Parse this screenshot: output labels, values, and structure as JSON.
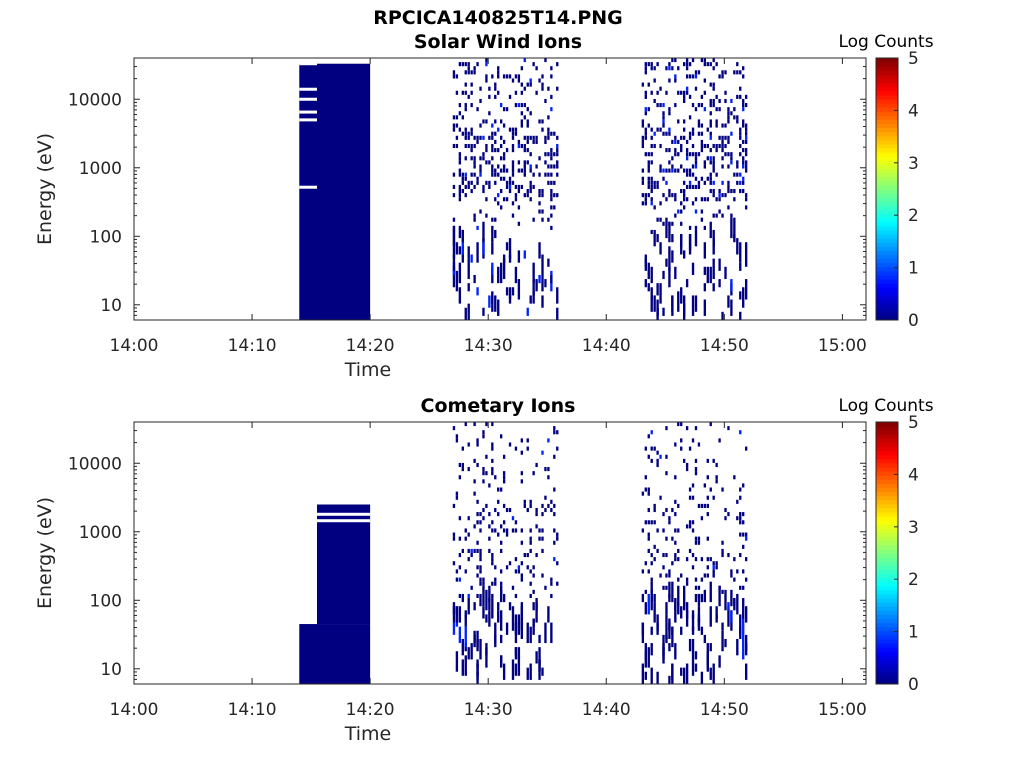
{
  "figure_title": "RPCICA140825T14.PNG",
  "chart_data": [
    {
      "type": "heatmap",
      "title": "Solar Wind Ions",
      "xlabel": "Time",
      "ylabel": "Energy (eV)",
      "x_range": [
        "14:00",
        "15:02"
      ],
      "x_ticks": [
        "14:00",
        "14:10",
        "14:20",
        "14:30",
        "14:40",
        "14:50",
        "15:00"
      ],
      "y_scale": "log",
      "y_range": [
        6,
        40000
      ],
      "y_ticks": [
        "10",
        "100",
        "1000",
        "10000"
      ],
      "colorbar": {
        "label": "Log Counts",
        "min": 0,
        "max": 5,
        "ticks": [
          "0",
          "1",
          "2",
          "3",
          "4",
          "5"
        ],
        "colormap": "jet"
      },
      "blocks": [
        {
          "t_start": "14:14",
          "t_end": "14:20",
          "e_min": 6,
          "e_max": 33000,
          "log_counts": 0
        }
      ],
      "sparse_intervals": [
        {
          "t_start": "14:27",
          "t_end": "14:36",
          "e_min": 6,
          "e_max": 40000,
          "log_counts": "0-1"
        },
        {
          "t_start": "14:43",
          "t_end": "14:52",
          "e_min": 6,
          "e_max": 40000,
          "log_counts": "0-1"
        }
      ]
    },
    {
      "type": "heatmap",
      "title": "Cometary Ions",
      "xlabel": "Time",
      "ylabel": "Energy (eV)",
      "x_range": [
        "14:00",
        "15:02"
      ],
      "x_ticks": [
        "14:00",
        "14:10",
        "14:20",
        "14:30",
        "14:40",
        "14:50",
        "15:00"
      ],
      "y_scale": "log",
      "y_range": [
        6,
        40000
      ],
      "y_ticks": [
        "10",
        "100",
        "1000",
        "10000"
      ],
      "colorbar": {
        "label": "Log Counts",
        "min": 0,
        "max": 5,
        "ticks": [
          "0",
          "1",
          "2",
          "3",
          "4",
          "5"
        ],
        "colormap": "jet"
      },
      "blocks": [
        {
          "t_start": "14:14",
          "t_end": "14:20",
          "e_min": 6,
          "e_max": 45,
          "log_counts": 0
        },
        {
          "t_start": "14:15.5",
          "t_end": "14:20",
          "e_min": 45,
          "e_max": 2500,
          "log_counts": 0
        }
      ],
      "sparse_intervals": [
        {
          "t_start": "14:27",
          "t_end": "14:36",
          "e_min": 6,
          "e_max": 40000,
          "log_counts": "0-1"
        },
        {
          "t_start": "14:43",
          "t_end": "14:52",
          "e_min": 6,
          "e_max": 40000,
          "log_counts": "0-1"
        }
      ]
    }
  ]
}
